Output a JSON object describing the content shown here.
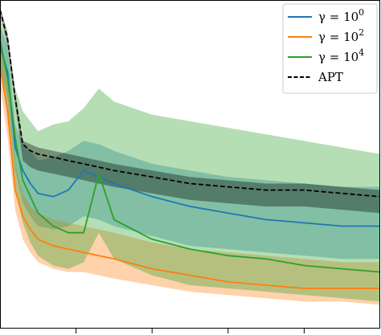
{
  "chart_data": {
    "type": "line",
    "title": "",
    "xlabel": "",
    "ylabel": "",
    "xlim": [
      0,
      100
    ],
    "ylim": [
      0,
      100
    ],
    "x_ticks_visible": [
      20,
      40,
      60,
      80
    ],
    "tick_labels_visible": false,
    "grid": false,
    "legend_position": "top-right",
    "x": [
      0,
      2,
      4,
      6,
      8,
      10,
      14,
      18,
      22,
      26,
      30,
      40,
      50,
      60,
      70,
      80,
      90,
      100
    ],
    "series": [
      {
        "name": "γ = 10^0",
        "legend_label": "γ = 10",
        "legend_exponent": "0",
        "color": "#1f77b4",
        "dash": "solid",
        "mean": [
          86,
          78,
          55,
          48,
          44,
          41,
          40,
          42,
          48,
          46,
          44,
          40,
          37,
          35,
          33,
          32,
          31,
          31
        ],
        "lower": [
          80,
          70,
          48,
          38,
          34,
          31,
          30,
          31,
          34,
          33,
          31,
          28,
          25,
          24,
          23,
          22,
          21,
          21
        ],
        "upper": [
          92,
          86,
          62,
          56,
          54,
          51,
          52,
          54,
          57,
          56,
          54,
          50,
          48,
          46,
          45,
          44,
          43,
          43
        ]
      },
      {
        "name": "γ = 10^2",
        "legend_label": "γ = 10",
        "legend_exponent": "2",
        "color": "#ff7f0e",
        "dash": "solid",
        "mean": [
          80,
          66,
          42,
          34,
          30,
          27,
          25,
          24,
          23,
          22,
          21,
          18,
          16,
          14,
          13,
          12,
          12,
          12
        ],
        "lower": [
          74,
          58,
          36,
          27,
          23,
          20,
          18,
          17,
          17,
          16,
          15,
          13,
          11,
          10,
          9,
          8,
          8,
          7
        ],
        "upper": [
          87,
          74,
          50,
          41,
          37,
          35,
          33,
          32,
          31,
          30,
          29,
          26,
          24,
          23,
          22,
          21,
          20,
          20
        ]
      },
      {
        "name": "γ = 10^4",
        "legend_label": "γ = 10",
        "legend_exponent": "4",
        "color": "#2ca02c",
        "dash": "solid",
        "mean": [
          88,
          76,
          58,
          45,
          40,
          35,
          31,
          29,
          29,
          47,
          33,
          27,
          24,
          22,
          21,
          19,
          18,
          17
        ],
        "lower": [
          80,
          64,
          42,
          32,
          26,
          22,
          19,
          18,
          20,
          29,
          21,
          16,
          13,
          12,
          11,
          10,
          9,
          8
        ],
        "upper": [
          95,
          88,
          73,
          66,
          63,
          60,
          62,
          63,
          67,
          73,
          69,
          65,
          63,
          61,
          59,
          57,
          55,
          53
        ]
      },
      {
        "name": "APT",
        "legend_label": "APT",
        "color": "#000000",
        "dash": "dashed",
        "mean": [
          97,
          88,
          70,
          56,
          54,
          53,
          52,
          51,
          50,
          49,
          48,
          46,
          44,
          43,
          42,
          42,
          41,
          40
        ],
        "lower": [
          96,
          86,
          68,
          51,
          49,
          48,
          47,
          46,
          45,
          44,
          43,
          41,
          39,
          38,
          37,
          37,
          36,
          35
        ],
        "upper": [
          98,
          90,
          72,
          57,
          56,
          55,
          54,
          53,
          52,
          51,
          50,
          48,
          46,
          45,
          44,
          44,
          43,
          42
        ]
      }
    ]
  }
}
